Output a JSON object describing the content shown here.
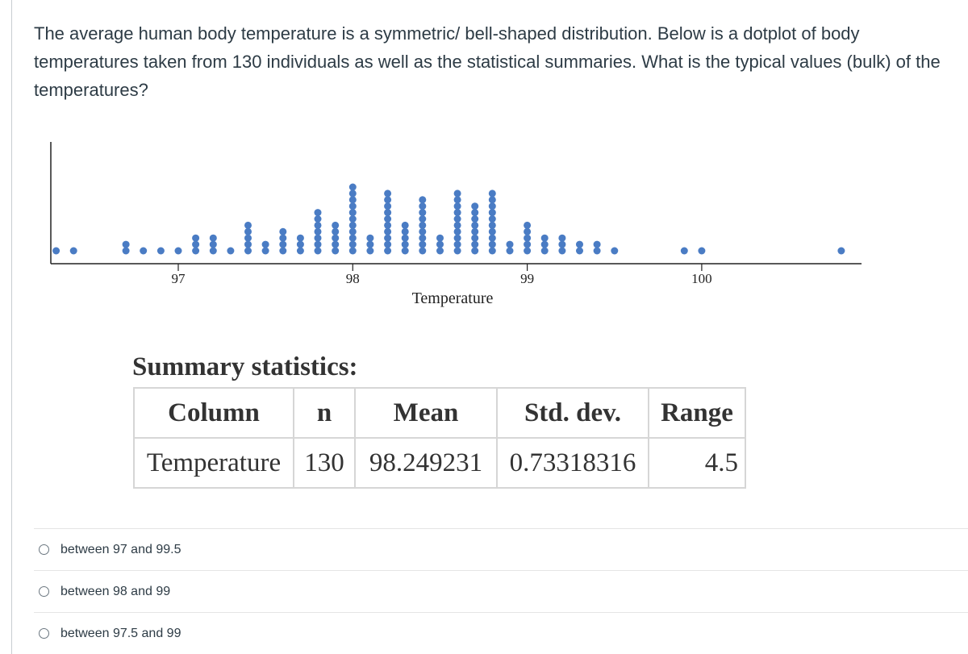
{
  "question": {
    "text": "The average human body temperature is a symmetric/ bell-shaped distribution. Below is a dotplot of body temperatures taken from 130 individuals as well as the statistical summaries. What is the typical values (bulk) of the temperatures?"
  },
  "chart_data": {
    "type": "scatter",
    "chart_subtype": "dotplot",
    "xlabel": "Temperature",
    "x_ticks": [
      97,
      98,
      99,
      100
    ],
    "xlim": [
      96.3,
      100.8
    ],
    "grid": false,
    "dot_color": "#4a7cc4",
    "points": [
      {
        "x": 96.3,
        "count": 1
      },
      {
        "x": 96.4,
        "count": 1
      },
      {
        "x": 96.7,
        "count": 2
      },
      {
        "x": 96.8,
        "count": 1
      },
      {
        "x": 96.9,
        "count": 1
      },
      {
        "x": 97.0,
        "count": 1
      },
      {
        "x": 97.1,
        "count": 3
      },
      {
        "x": 97.2,
        "count": 3
      },
      {
        "x": 97.3,
        "count": 1
      },
      {
        "x": 97.4,
        "count": 5
      },
      {
        "x": 97.5,
        "count": 2
      },
      {
        "x": 97.6,
        "count": 4
      },
      {
        "x": 97.7,
        "count": 3
      },
      {
        "x": 97.8,
        "count": 7
      },
      {
        "x": 97.9,
        "count": 5
      },
      {
        "x": 98.0,
        "count": 11
      },
      {
        "x": 98.1,
        "count": 3
      },
      {
        "x": 98.2,
        "count": 10
      },
      {
        "x": 98.3,
        "count": 5
      },
      {
        "x": 98.4,
        "count": 9
      },
      {
        "x": 98.5,
        "count": 3
      },
      {
        "x": 98.6,
        "count": 10
      },
      {
        "x": 98.7,
        "count": 8
      },
      {
        "x": 98.8,
        "count": 10
      },
      {
        "x": 98.9,
        "count": 2
      },
      {
        "x": 99.0,
        "count": 5
      },
      {
        "x": 99.1,
        "count": 3
      },
      {
        "x": 99.2,
        "count": 3
      },
      {
        "x": 99.3,
        "count": 2
      },
      {
        "x": 99.4,
        "count": 2
      },
      {
        "x": 99.5,
        "count": 1
      },
      {
        "x": 99.9,
        "count": 1
      },
      {
        "x": 100.0,
        "count": 1
      },
      {
        "x": 100.8,
        "count": 1
      }
    ]
  },
  "summary": {
    "title": "Summary statistics:",
    "headers": {
      "column": "Column",
      "n": "n",
      "mean": "Mean",
      "std_dev": "Std. dev.",
      "range": "Range"
    },
    "row": {
      "column": "Temperature",
      "n": "130",
      "mean": "98.249231",
      "std_dev": "0.73318316",
      "range": "4.5"
    }
  },
  "answers": [
    {
      "label": "between 97 and 99.5"
    },
    {
      "label": "between 98 and 99"
    },
    {
      "label": "between 97.5 and 99"
    }
  ]
}
